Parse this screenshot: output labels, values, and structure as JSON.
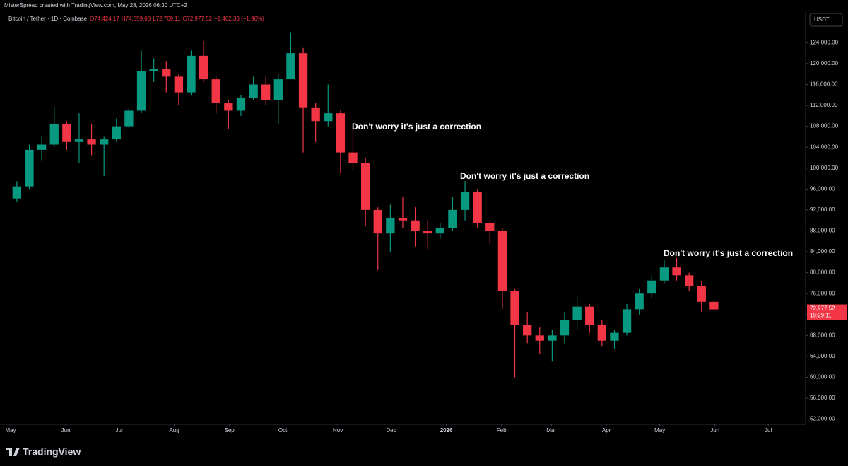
{
  "header": {
    "credit": "MisterSpread created with TradingView.com, May 28, 2026 06:30 UTC+2",
    "symbol": "Bitcoin / Tether · 1D · Coinbase",
    "open": {
      "value": 74424.17,
      "label": "O74,424.17"
    },
    "high": {
      "value": 74559.08,
      "label": "H74,559.08"
    },
    "low": {
      "value": 72769.11,
      "label": "L72,769.11"
    },
    "close": {
      "value": 72977.52,
      "label": "C72,977.52"
    },
    "change": "−1,462.33 (−1.96%)"
  },
  "currency": "USDT",
  "logo": "TradingView",
  "chart_data": {
    "type": "candlestick",
    "up_color": "#089981",
    "down_color": "#f23645",
    "x": [
      0,
      7,
      14,
      21,
      28,
      35,
      42,
      49,
      56,
      63,
      70,
      77,
      84,
      91,
      98,
      105,
      112,
      119,
      126,
      133,
      140,
      147,
      154,
      161,
      168,
      175,
      182,
      189,
      196,
      203,
      210,
      217,
      224,
      231,
      238,
      245,
      252,
      259,
      266,
      273,
      280,
      287,
      294,
      301,
      308,
      315,
      322,
      329,
      336,
      343,
      350,
      357,
      364,
      371,
      378,
      385,
      392
    ],
    "open": [
      94200,
      96500,
      103500,
      104500,
      108500,
      105000,
      105500,
      104500,
      105500,
      108000,
      111000,
      118500,
      119000,
      117500,
      114500,
      121500,
      117000,
      112500,
      111000,
      113500,
      116000,
      113000,
      117000,
      122000,
      111500,
      109000,
      110500,
      103000,
      101000,
      92000,
      87500,
      90500,
      90000,
      88000,
      87500,
      88500,
      92000,
      95500,
      89500,
      88000,
      76500,
      70000,
      68000,
      67000,
      68000,
      71000,
      73500,
      70000,
      67000,
      68500,
      73000,
      76000,
      78500,
      81000,
      79500,
      77500,
      74424.17
    ],
    "high": [
      97500,
      104500,
      106000,
      111800,
      109000,
      110500,
      108500,
      106000,
      109500,
      111500,
      122500,
      121000,
      120500,
      118000,
      122500,
      124300,
      117500,
      113000,
      114000,
      117500,
      117500,
      118000,
      126000,
      123000,
      112500,
      116000,
      111000,
      107500,
      102000,
      92500,
      93000,
      94500,
      92500,
      90000,
      89500,
      94500,
      97500,
      96000,
      90000,
      88500,
      77000,
      72500,
      69500,
      69000,
      72500,
      75500,
      74000,
      71000,
      69000,
      74000,
      77000,
      79500,
      82500,
      82800,
      80000,
      78500,
      74559.08
    ],
    "low": [
      93500,
      96000,
      101500,
      104000,
      103500,
      101000,
      102500,
      98500,
      105000,
      107500,
      110500,
      116500,
      114500,
      112000,
      114000,
      116500,
      110500,
      107500,
      110000,
      113000,
      112000,
      108500,
      117000,
      103000,
      105000,
      108000,
      99000,
      99500,
      89000,
      80500,
      84000,
      88500,
      85000,
      84500,
      86500,
      88000,
      90000,
      88500,
      85500,
      73000,
      60000,
      66500,
      64500,
      63000,
      66500,
      69000,
      68500,
      66000,
      65500,
      68000,
      72000,
      75000,
      78000,
      78500,
      76500,
      72500,
      72769.11
    ],
    "close": [
      96500,
      103500,
      104500,
      108500,
      105000,
      105500,
      104500,
      105500,
      108000,
      111000,
      118500,
      119000,
      117500,
      114500,
      121500,
      117000,
      112500,
      111000,
      113500,
      116000,
      113000,
      117000,
      122000,
      111500,
      109000,
      110500,
      103000,
      101000,
      92000,
      87500,
      90500,
      90000,
      88000,
      87500,
      88500,
      92000,
      95500,
      89500,
      88000,
      76500,
      70000,
      68000,
      67000,
      68000,
      71000,
      73500,
      70000,
      67000,
      68500,
      73000,
      76000,
      78500,
      81000,
      79500,
      77500,
      74424.17,
      72977.52
    ],
    "xlim": [
      -4,
      447
    ],
    "ylim": [
      51000,
      130000
    ],
    "xticks": [
      {
        "value": 0,
        "label": "May"
      },
      {
        "value": 31,
        "label": "Jun"
      },
      {
        "value": 61,
        "label": "Jul"
      },
      {
        "value": 92,
        "label": "Aug"
      },
      {
        "value": 123,
        "label": "Sep"
      },
      {
        "value": 153,
        "label": "Oct"
      },
      {
        "value": 184,
        "label": "Nov"
      },
      {
        "value": 214,
        "label": "Dec"
      },
      {
        "value": 245,
        "label": "2026"
      },
      {
        "value": 276,
        "label": "Feb"
      },
      {
        "value": 304,
        "label": "Mar"
      },
      {
        "value": 335,
        "label": "Apr"
      },
      {
        "value": 365,
        "label": "May"
      },
      {
        "value": 396,
        "label": "Jun"
      },
      {
        "value": 426,
        "label": "Jul"
      }
    ],
    "yticks": [
      {
        "value": 52000,
        "label": "52,000.00"
      },
      {
        "value": 56000,
        "label": "56,000.00"
      },
      {
        "value": 60000,
        "label": "60,000.00"
      },
      {
        "value": 64000,
        "label": "64,000.00"
      },
      {
        "value": 68000,
        "label": "68,000.00"
      },
      {
        "value": 72000,
        "label": "72,000.00"
      },
      {
        "value": 76000,
        "label": "76,000.00"
      },
      {
        "value": 80000,
        "label": "80,000.00"
      },
      {
        "value": 84000,
        "label": "84,000.00"
      },
      {
        "value": 88000,
        "label": "88,000.00"
      },
      {
        "value": 92000,
        "label": "92,000.00"
      },
      {
        "value": 96000,
        "label": "96,000.00"
      },
      {
        "value": 100000,
        "label": "100,000.00"
      },
      {
        "value": 104000,
        "label": "104,000.00"
      },
      {
        "value": 108000,
        "label": "108,000.00"
      },
      {
        "value": 112000,
        "label": "112,000.00"
      },
      {
        "value": 116000,
        "label": "116,000.00"
      },
      {
        "value": 120000,
        "label": "120,000.00"
      },
      {
        "value": 124000,
        "label": "124,000.00"
      }
    ],
    "price_tag": {
      "value": 72977.52,
      "label": "72,977.52",
      "countdown": "19:29:11"
    },
    "annotations": [
      "Don't worry it's just a correction",
      "Don't worry it's just a correction",
      "Don't worry it's just a correction"
    ]
  }
}
